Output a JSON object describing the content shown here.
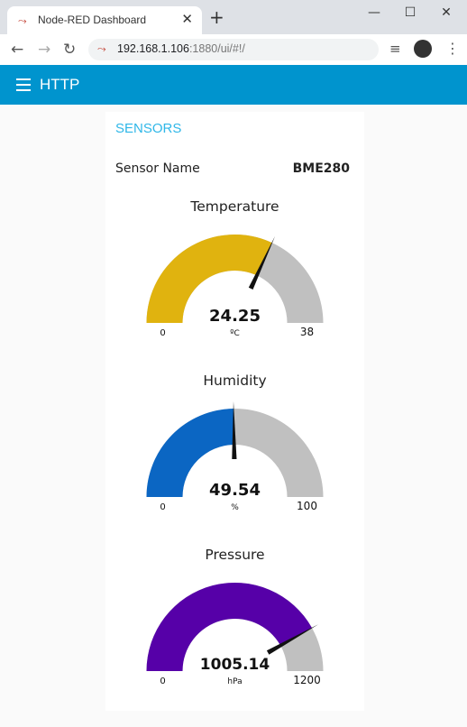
{
  "browser": {
    "tab_title": "Node-RED Dashboard",
    "tab_icon": "node-red-icon",
    "url_host": "192.168.1.106",
    "url_rest": ":1880/ui/#!/"
  },
  "header": {
    "title": "HTTP"
  },
  "group": {
    "title": "SENSORS",
    "sensor_name_label": "Sensor Name",
    "sensor_name_value": "BME280"
  },
  "gauges": [
    {
      "title": "Temperature",
      "value": 24.25,
      "value_text": "24.25",
      "unit": "ºC",
      "min": 0,
      "max": 38,
      "min_text": "0",
      "max_text": "38",
      "color": "#e0b30f"
    },
    {
      "title": "Humidity",
      "value": 49.54,
      "value_text": "49.54",
      "unit": "%",
      "min": 0,
      "max": 100,
      "min_text": "0",
      "max_text": "100",
      "color": "#0b66c3"
    },
    {
      "title": "Pressure",
      "value": 1005.14,
      "value_text": "1005.14",
      "unit": "hPa",
      "min": 0,
      "max": 1200,
      "min_text": "0",
      "max_text": "1200",
      "color": "#5600a8"
    }
  ]
}
